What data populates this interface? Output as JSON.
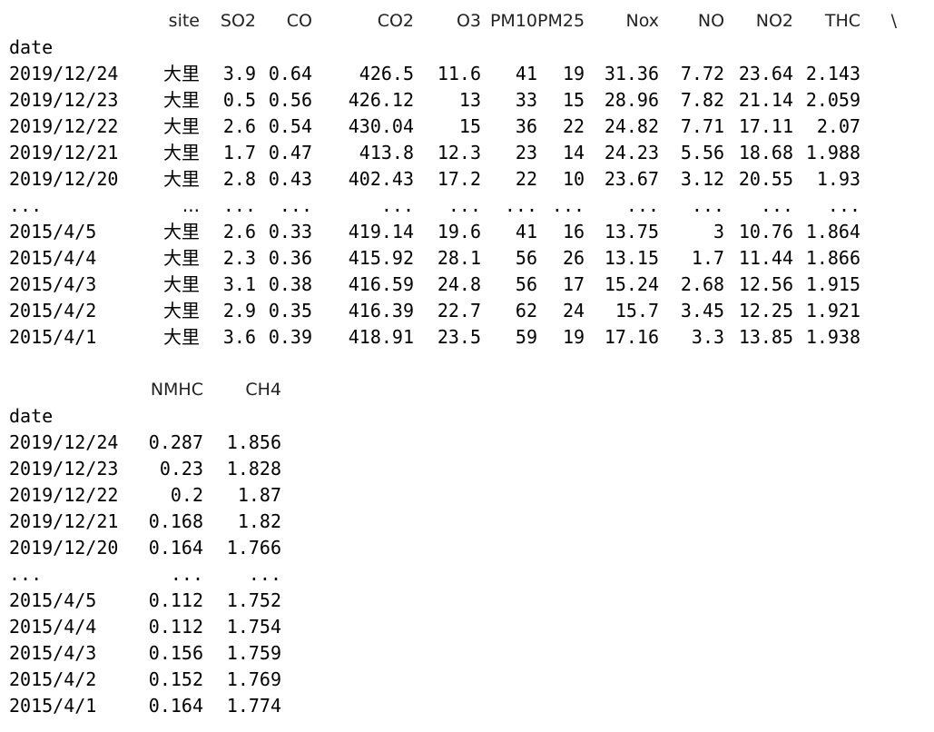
{
  "block1": {
    "index_name": "date",
    "columns": [
      "site",
      "SO2",
      "CO",
      "CO2",
      "O3",
      "PM10",
      "PM25",
      "Nox",
      "NO",
      "NO2",
      "THC"
    ],
    "continuation": "\\",
    "rows": [
      {
        "date": "2019/12/24",
        "cells": [
          "大里",
          "3.9",
          "0.64",
          "426.5",
          "11.6",
          "41",
          "19",
          "31.36",
          "7.72",
          "23.64",
          "2.143"
        ]
      },
      {
        "date": "2019/12/23",
        "cells": [
          "大里",
          "0.5",
          "0.56",
          "426.12",
          "13",
          "33",
          "15",
          "28.96",
          "7.82",
          "21.14",
          "2.059"
        ]
      },
      {
        "date": "2019/12/22",
        "cells": [
          "大里",
          "2.6",
          "0.54",
          "430.04",
          "15",
          "36",
          "22",
          "24.82",
          "7.71",
          "17.11",
          "2.07"
        ]
      },
      {
        "date": "2019/12/21",
        "cells": [
          "大里",
          "1.7",
          "0.47",
          "413.8",
          "12.3",
          "23",
          "14",
          "24.23",
          "5.56",
          "18.68",
          "1.988"
        ]
      },
      {
        "date": "2019/12/20",
        "cells": [
          "大里",
          "2.8",
          "0.43",
          "402.43",
          "17.2",
          "22",
          "10",
          "23.67",
          "3.12",
          "20.55",
          "1.93"
        ]
      },
      {
        "date": "...",
        "cells": [
          "...",
          "...",
          "...",
          "...",
          "...",
          "...",
          "...",
          "...",
          "...",
          "...",
          "..."
        ]
      },
      {
        "date": "2015/4/5",
        "cells": [
          "大里",
          "2.6",
          "0.33",
          "419.14",
          "19.6",
          "41",
          "16",
          "13.75",
          "3",
          "10.76",
          "1.864"
        ]
      },
      {
        "date": "2015/4/4",
        "cells": [
          "大里",
          "2.3",
          "0.36",
          "415.92",
          "28.1",
          "56",
          "26",
          "13.15",
          "1.7",
          "11.44",
          "1.866"
        ]
      },
      {
        "date": "2015/4/3",
        "cells": [
          "大里",
          "3.1",
          "0.38",
          "416.59",
          "24.8",
          "56",
          "17",
          "15.24",
          "2.68",
          "12.56",
          "1.915"
        ]
      },
      {
        "date": "2015/4/2",
        "cells": [
          "大里",
          "2.9",
          "0.35",
          "416.39",
          "22.7",
          "62",
          "24",
          "15.7",
          "3.45",
          "12.25",
          "1.921"
        ]
      },
      {
        "date": "2015/4/1",
        "cells": [
          "大里",
          "3.6",
          "0.39",
          "418.91",
          "23.5",
          "59",
          "19",
          "17.16",
          "3.3",
          "13.85",
          "1.938"
        ]
      }
    ]
  },
  "block2": {
    "index_name": "date",
    "columns": [
      "NMHC",
      "CH4"
    ],
    "rows": [
      {
        "date": "2019/12/24",
        "cells": [
          "0.287",
          "1.856"
        ]
      },
      {
        "date": "2019/12/23",
        "cells": [
          "0.23",
          "1.828"
        ]
      },
      {
        "date": "2019/12/22",
        "cells": [
          "0.2",
          "1.87"
        ]
      },
      {
        "date": "2019/12/21",
        "cells": [
          "0.168",
          "1.82"
        ]
      },
      {
        "date": "2019/12/20",
        "cells": [
          "0.164",
          "1.766"
        ]
      },
      {
        "date": "...",
        "cells": [
          "...",
          "..."
        ]
      },
      {
        "date": "2015/4/5",
        "cells": [
          "0.112",
          "1.752"
        ]
      },
      {
        "date": "2015/4/4",
        "cells": [
          "0.112",
          "1.754"
        ]
      },
      {
        "date": "2015/4/3",
        "cells": [
          "0.156",
          "1.759"
        ]
      },
      {
        "date": "2015/4/2",
        "cells": [
          "0.152",
          "1.769"
        ]
      },
      {
        "date": "2015/4/1",
        "cells": [
          "0.164",
          "1.774"
        ]
      }
    ]
  }
}
